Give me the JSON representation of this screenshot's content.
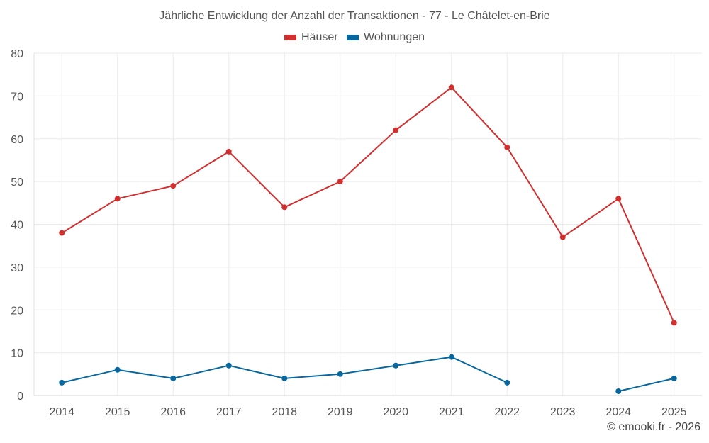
{
  "chart_data": {
    "type": "line",
    "title": "Jährliche Entwicklung der Anzahl der Transaktionen - 77 - Le Châtelet-en-Brie",
    "x": [
      "2014",
      "2015",
      "2016",
      "2017",
      "2018",
      "2019",
      "2020",
      "2021",
      "2022",
      "2023",
      "2024",
      "2025"
    ],
    "ylim": [
      0,
      80
    ],
    "yticks": [
      0,
      10,
      20,
      30,
      40,
      50,
      60,
      70,
      80
    ],
    "grid": true,
    "legend_position": "top-center",
    "series": [
      {
        "name": "Häuser",
        "color": "#d32f2f",
        "values": [
          38,
          46,
          49,
          57,
          44,
          50,
          62,
          72,
          58,
          37,
          46,
          17
        ]
      },
      {
        "name": "Wohnungen",
        "color": "#07689f",
        "values": [
          3,
          6,
          4,
          7,
          4,
          5,
          7,
          9,
          3,
          null,
          1,
          4
        ]
      }
    ]
  },
  "credit": "© emooki.fr - 2026"
}
